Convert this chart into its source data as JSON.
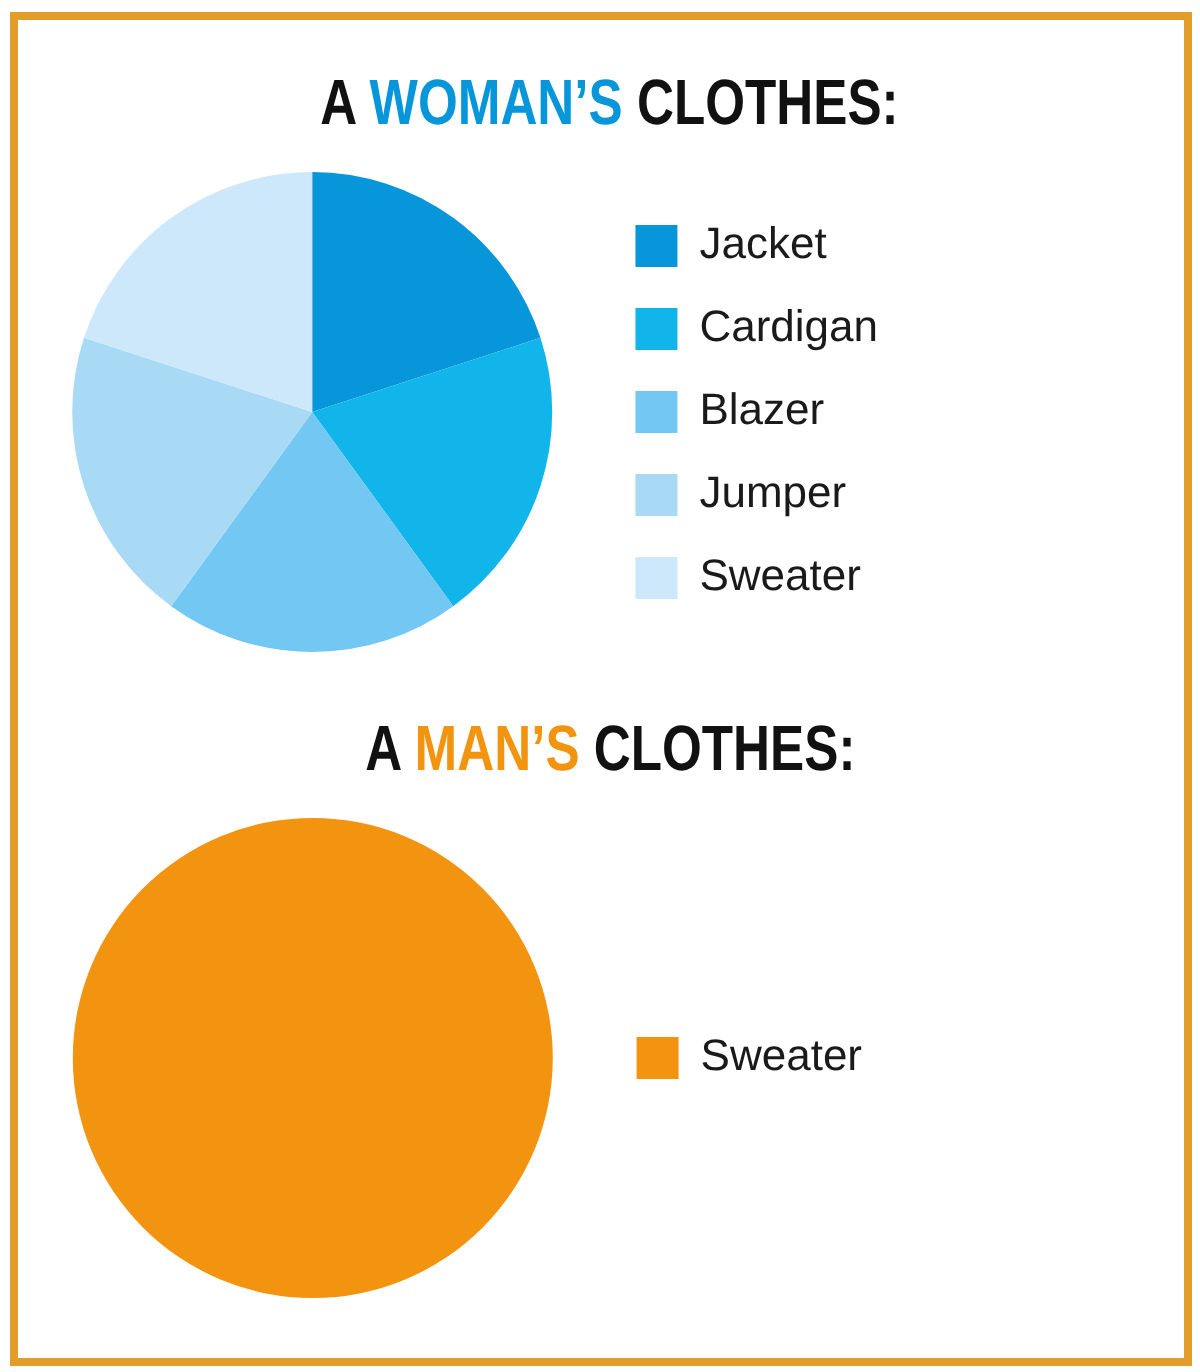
{
  "chart_data": [
    {
      "type": "pie",
      "title": "A WOMAN’S CLOTHES:",
      "categories": [
        "Jacket",
        "Cardigan",
        "Blazer",
        "Jumper",
        "Sweater"
      ],
      "values": [
        20,
        20,
        20,
        20,
        20
      ],
      "colors": [
        "#0896da",
        "#12b5ea",
        "#72c8f2",
        "#a8daf6",
        "#cce8fa"
      ],
      "legend": "right"
    },
    {
      "type": "pie",
      "title": "A MAN’S CLOTHES:",
      "categories": [
        "Sweater"
      ],
      "values": [
        100
      ],
      "colors": [
        "#f29410"
      ],
      "legend": "right"
    }
  ]
}
